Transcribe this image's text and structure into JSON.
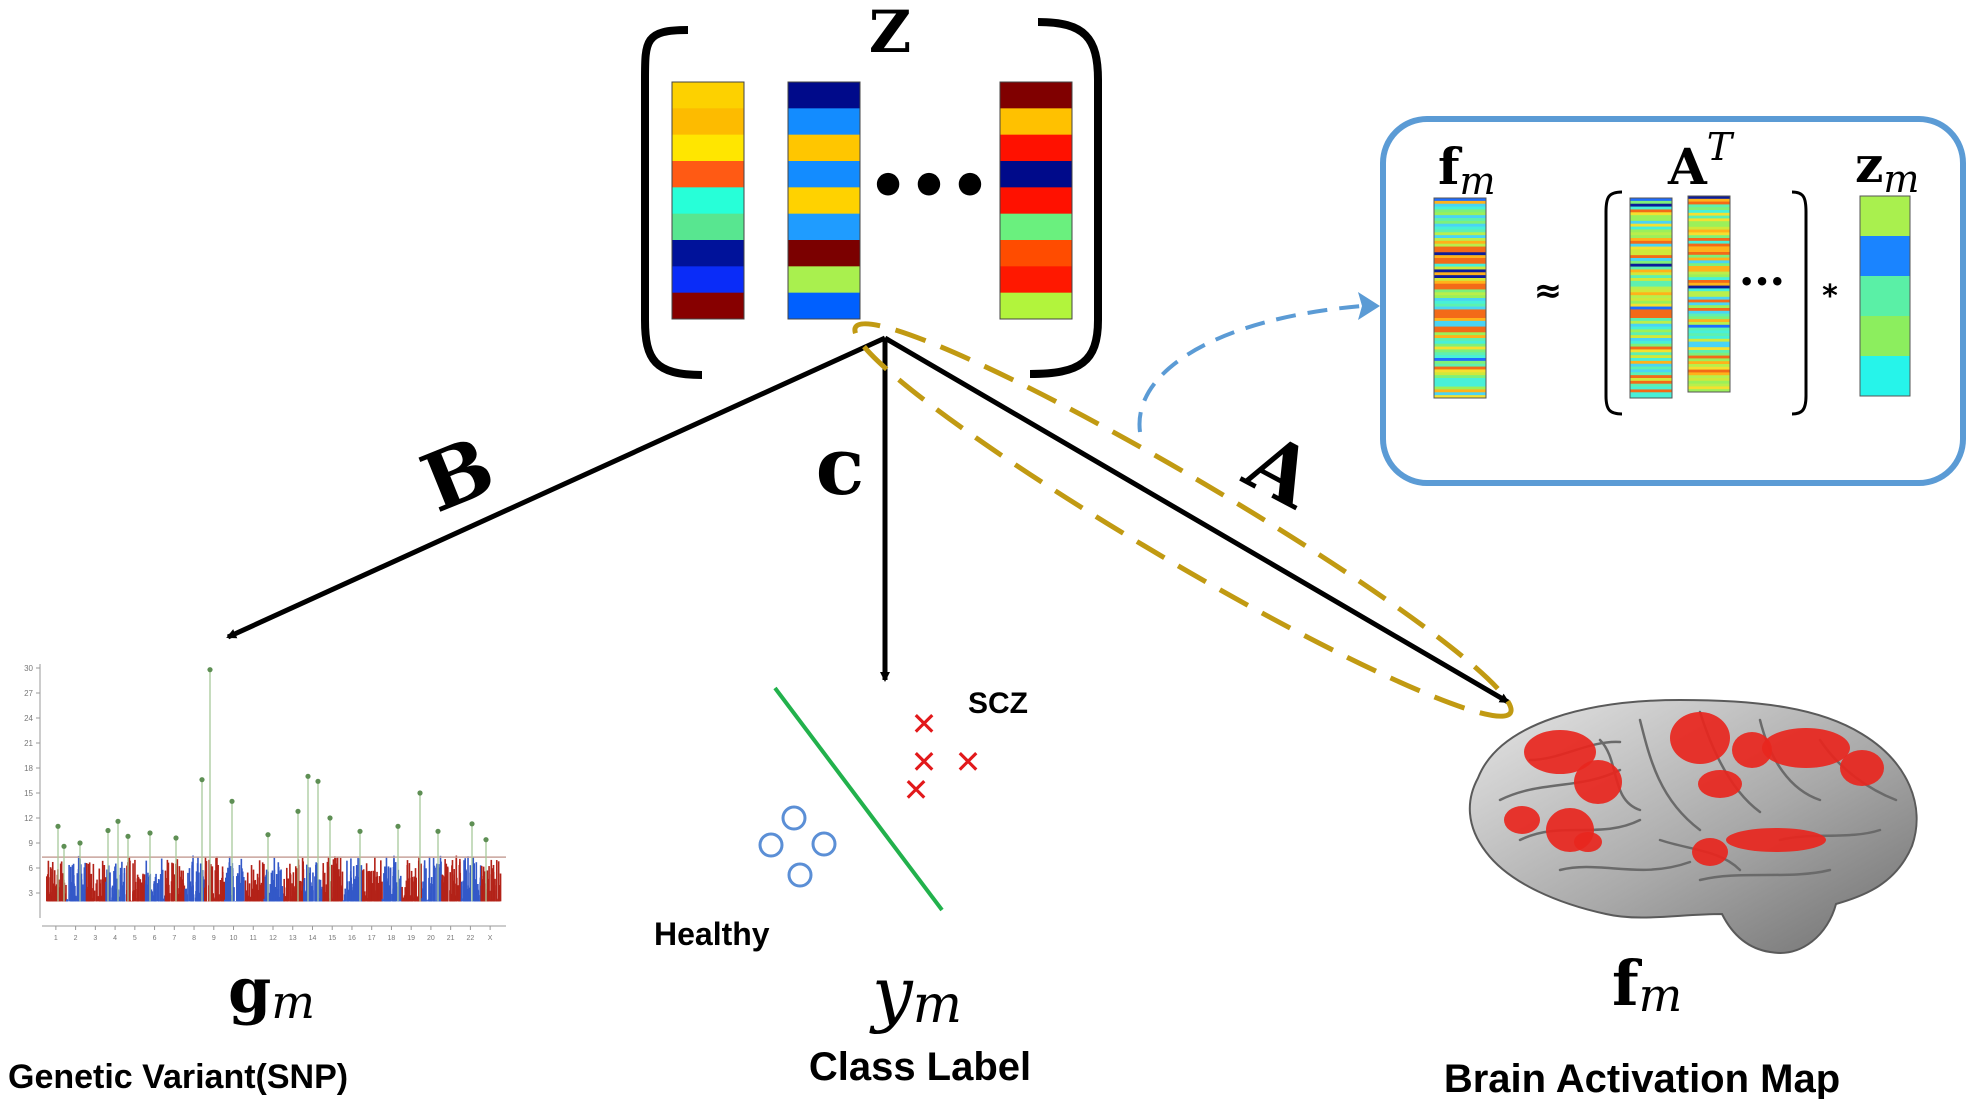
{
  "matrix": {
    "symbol": "Z",
    "ellipsis": "•••",
    "columns": [
      [
        "#fdd100",
        "#fdbb00",
        "#ffe600",
        "#ff5a14",
        "#27ffd8",
        "#58e690",
        "#00129a",
        "#0a2cf8",
        "#870000"
      ],
      [
        "#000a8a",
        "#138cff",
        "#ffc600",
        "#138cff",
        "#ffd200",
        "#1f9cff",
        "#7b0000",
        "#a9f04e",
        "#0060ff"
      ],
      [
        "#800000",
        "#ffc100",
        "#ff1100",
        "#000a8a",
        "#ff1100",
        "#6af07e",
        "#ff4c00",
        "#ff1800",
        "#b2f43c"
      ]
    ]
  },
  "edges": {
    "b": "B",
    "c": "c",
    "a": "A"
  },
  "decomposition": {
    "lhs_main": "f",
    "lhs_sub": "m",
    "approx": "≈",
    "matrix_main": "A",
    "matrix_sup": "T",
    "ellipsis": "•••",
    "times": "*",
    "rhs_main": "z",
    "rhs_sub": "m",
    "z_colors": [
      "#a9f04e",
      "#1a84ff",
      "#5af0a6",
      "#8cee5e",
      "#26f4ea"
    ]
  },
  "genetic": {
    "axis_ticks": [
      "30",
      "27",
      "24",
      "21",
      "18",
      "15",
      "12",
      "9",
      "6",
      "3"
    ],
    "chromosomes": [
      "1",
      "2",
      "3",
      "4",
      "5",
      "6",
      "7",
      "8",
      "9",
      "10",
      "11",
      "12",
      "13",
      "14",
      "15",
      "16",
      "17",
      "18",
      "19",
      "20",
      "21",
      "22",
      "X"
    ],
    "colors": [
      "#b32218",
      "#3358c8"
    ],
    "threshold": 7.3,
    "symbol_main": "g",
    "symbol_sub": "m",
    "caption": "Genetic Variant(SNP)"
  },
  "classification": {
    "scz_label": "SCZ",
    "healthy_label": "Healthy",
    "symbol_main": "y",
    "symbol_sub": "m",
    "caption": "Class Label",
    "scz_marker": "✕",
    "scz_color": "#e2191b",
    "healthy_color": "#5b8fd6",
    "boundary_color": "#22b14c"
  },
  "brain": {
    "symbol_main": "f",
    "symbol_sub": "m",
    "caption": "Brain Activation Map",
    "activation_color": "#e8261e"
  }
}
